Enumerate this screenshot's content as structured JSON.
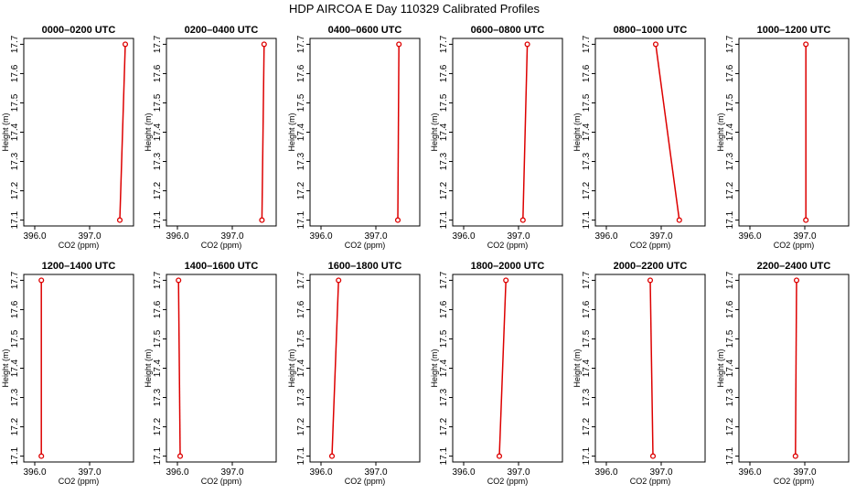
{
  "figure": {
    "title": "HDP AIRCOA E  Day 110329  Calibrated Profiles"
  },
  "chart_data": [
    {
      "type": "line",
      "title": "0000–0200 UTC",
      "xlabel": "CO2 (ppm)",
      "ylabel": "Height (m)",
      "xlim": [
        395.8,
        397.8
      ],
      "ylim": [
        17.08,
        17.72
      ],
      "x_ticks": [
        "396.0",
        "397.0"
      ],
      "y_ticks": [
        "17.1",
        "17.2",
        "17.3",
        "17.4",
        "17.5",
        "17.6",
        "17.7"
      ],
      "x": [
        397.55,
        397.65
      ],
      "y": [
        17.1,
        17.7
      ]
    },
    {
      "type": "line",
      "title": "0200–0400 UTC",
      "xlabel": "CO2 (ppm)",
      "ylabel": "Height (m)",
      "xlim": [
        395.8,
        397.8
      ],
      "ylim": [
        17.08,
        17.72
      ],
      "x_ticks": [
        "396.0",
        "397.0"
      ],
      "y_ticks": [
        "17.1",
        "17.2",
        "17.3",
        "17.4",
        "17.5",
        "17.6",
        "17.7"
      ],
      "x": [
        397.54,
        397.58
      ],
      "y": [
        17.1,
        17.7
      ]
    },
    {
      "type": "line",
      "title": "0400–0600 UTC",
      "xlabel": "CO2 (ppm)",
      "ylabel": "Height (m)",
      "xlim": [
        395.8,
        397.8
      ],
      "ylim": [
        17.08,
        17.72
      ],
      "x_ticks": [
        "396.0",
        "397.0"
      ],
      "y_ticks": [
        "17.1",
        "17.2",
        "17.3",
        "17.4",
        "17.5",
        "17.6",
        "17.7"
      ],
      "x": [
        397.4,
        397.42
      ],
      "y": [
        17.1,
        17.7
      ]
    },
    {
      "type": "line",
      "title": "0600–0800 UTC",
      "xlabel": "CO2 (ppm)",
      "ylabel": "Height (m)",
      "xlim": [
        395.8,
        397.8
      ],
      "ylim": [
        17.08,
        17.72
      ],
      "x_ticks": [
        "396.0",
        "397.0"
      ],
      "y_ticks": [
        "17.1",
        "17.2",
        "17.3",
        "17.4",
        "17.5",
        "17.6",
        "17.7"
      ],
      "x": [
        397.08,
        397.16
      ],
      "y": [
        17.1,
        17.7
      ]
    },
    {
      "type": "line",
      "title": "0800–1000 UTC",
      "xlabel": "CO2 (ppm)",
      "ylabel": "Height (m)",
      "xlim": [
        395.8,
        397.8
      ],
      "ylim": [
        17.08,
        17.72
      ],
      "x_ticks": [
        "396.0",
        "397.0"
      ],
      "y_ticks": [
        "17.1",
        "17.2",
        "17.3",
        "17.4",
        "17.5",
        "17.6",
        "17.7"
      ],
      "x": [
        397.33,
        396.9
      ],
      "y": [
        17.1,
        17.7
      ]
    },
    {
      "type": "line",
      "title": "1000–1200 UTC",
      "xlabel": "CO2 (ppm)",
      "ylabel": "Height (m)",
      "xlim": [
        395.8,
        397.8
      ],
      "ylim": [
        17.08,
        17.72
      ],
      "x_ticks": [
        "396.0",
        "397.0"
      ],
      "y_ticks": [
        "17.1",
        "17.2",
        "17.3",
        "17.4",
        "17.5",
        "17.6",
        "17.7"
      ],
      "x": [
        397.02,
        397.02
      ],
      "y": [
        17.1,
        17.7
      ]
    },
    {
      "type": "line",
      "title": "1200–1400 UTC",
      "xlabel": "CO2 (ppm)",
      "ylabel": "Height (m)",
      "xlim": [
        395.8,
        397.8
      ],
      "ylim": [
        17.08,
        17.72
      ],
      "x_ticks": [
        "396.0",
        "397.0"
      ],
      "y_ticks": [
        "17.1",
        "17.2",
        "17.3",
        "17.4",
        "17.5",
        "17.6",
        "17.7"
      ],
      "x": [
        396.12,
        396.12
      ],
      "y": [
        17.1,
        17.7
      ]
    },
    {
      "type": "line",
      "title": "1400–1600 UTC",
      "xlabel": "CO2 (ppm)",
      "ylabel": "Height (m)",
      "xlim": [
        395.8,
        397.8
      ],
      "ylim": [
        17.08,
        17.72
      ],
      "x_ticks": [
        "396.0",
        "397.0"
      ],
      "y_ticks": [
        "17.1",
        "17.2",
        "17.3",
        "17.4",
        "17.5",
        "17.6",
        "17.7"
      ],
      "x": [
        396.05,
        396.02
      ],
      "y": [
        17.1,
        17.7
      ]
    },
    {
      "type": "line",
      "title": "1600–1800 UTC",
      "xlabel": "CO2 (ppm)",
      "ylabel": "Height (m)",
      "xlim": [
        395.8,
        397.8
      ],
      "ylim": [
        17.08,
        17.72
      ],
      "x_ticks": [
        "396.0",
        "397.0"
      ],
      "y_ticks": [
        "17.1",
        "17.2",
        "17.3",
        "17.4",
        "17.5",
        "17.6",
        "17.7"
      ],
      "x": [
        396.2,
        396.32
      ],
      "y": [
        17.1,
        17.7
      ]
    },
    {
      "type": "line",
      "title": "1800–2000 UTC",
      "xlabel": "CO2 (ppm)",
      "ylabel": "Height (m)",
      "xlim": [
        395.8,
        397.8
      ],
      "ylim": [
        17.08,
        17.72
      ],
      "x_ticks": [
        "396.0",
        "397.0"
      ],
      "y_ticks": [
        "17.1",
        "17.2",
        "17.3",
        "17.4",
        "17.5",
        "17.6",
        "17.7"
      ],
      "x": [
        396.65,
        396.77
      ],
      "y": [
        17.1,
        17.7
      ]
    },
    {
      "type": "line",
      "title": "2000–2200 UTC",
      "xlabel": "CO2 (ppm)",
      "ylabel": "Height (m)",
      "xlim": [
        395.8,
        397.8
      ],
      "ylim": [
        17.08,
        17.72
      ],
      "x_ticks": [
        "396.0",
        "397.0"
      ],
      "y_ticks": [
        "17.1",
        "17.2",
        "17.3",
        "17.4",
        "17.5",
        "17.6",
        "17.7"
      ],
      "x": [
        396.85,
        396.8
      ],
      "y": [
        17.1,
        17.7
      ]
    },
    {
      "type": "line",
      "title": "2200–2400 UTC",
      "xlabel": "CO2 (ppm)",
      "ylabel": "Height (m)",
      "xlim": [
        395.8,
        397.8
      ],
      "ylim": [
        17.08,
        17.72
      ],
      "x_ticks": [
        "396.0",
        "397.0"
      ],
      "y_ticks": [
        "17.1",
        "17.2",
        "17.3",
        "17.4",
        "17.5",
        "17.6",
        "17.7"
      ],
      "x": [
        396.83,
        396.85
      ],
      "y": [
        17.1,
        17.7
      ]
    }
  ]
}
